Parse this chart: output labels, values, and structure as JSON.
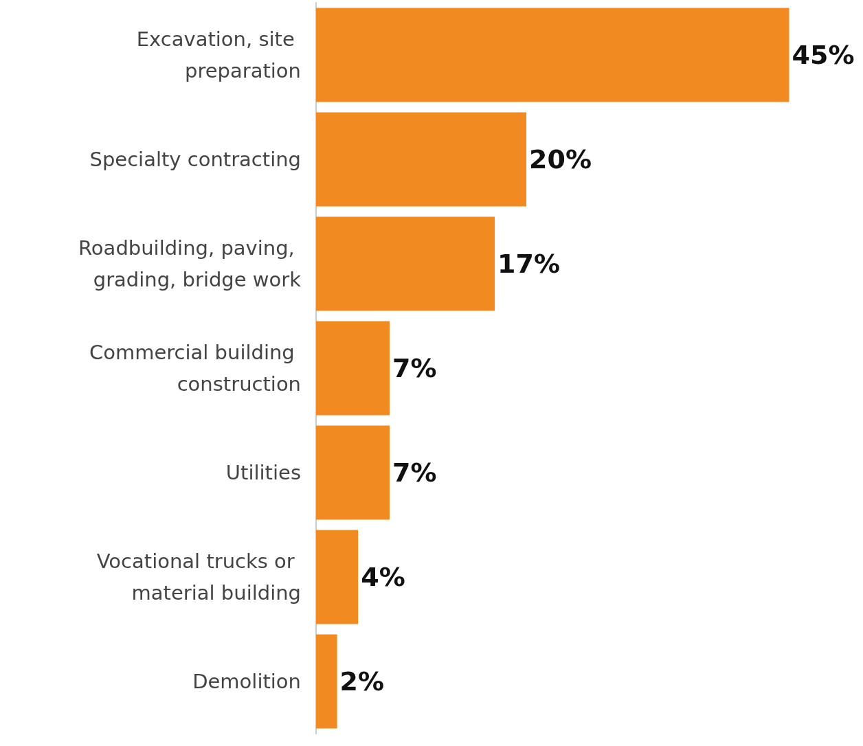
{
  "chart_data": {
    "type": "bar",
    "orientation": "horizontal",
    "categories": [
      "Excavation, site preparation",
      "Specialty contracting",
      "Roadbuilding, paving, grading, bridge work",
      "Commercial building construction",
      "Utilities",
      "Vocational trucks or material building",
      "Demolition"
    ],
    "values": [
      45,
      20,
      17,
      7,
      7,
      4,
      2
    ],
    "value_labels": [
      "45%",
      "20%",
      "17%",
      "7%",
      "7%",
      "4%",
      "2%"
    ],
    "color": "#f28a22",
    "tick_labels": "y"
  }
}
